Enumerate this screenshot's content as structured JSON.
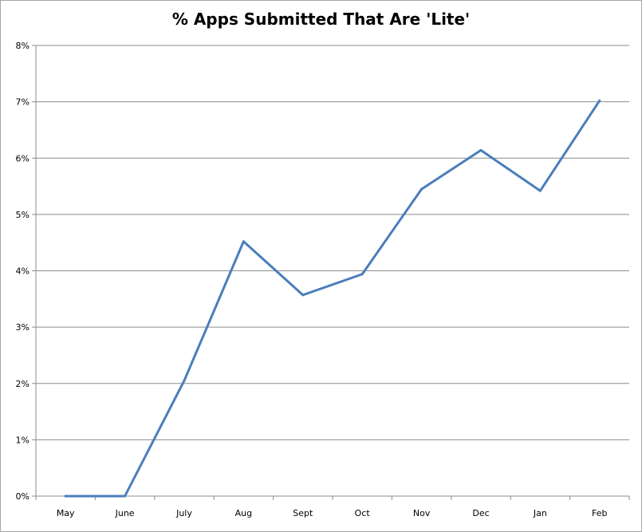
{
  "chart_data": {
    "type": "line",
    "title": "% Apps Submitted That Are 'Lite'",
    "xlabel": "",
    "ylabel": "",
    "categories": [
      "May",
      "June",
      "July",
      "Aug",
      "Sept",
      "Oct",
      "Nov",
      "Dec",
      "Jan",
      "Feb"
    ],
    "series": [
      {
        "values": [
          0.0,
          0.0,
          2.05,
          4.52,
          3.57,
          3.94,
          5.45,
          6.14,
          5.42,
          7.02
        ]
      }
    ],
    "ylim": [
      0,
      8
    ],
    "yticks": [
      0,
      1,
      2,
      3,
      4,
      5,
      6,
      7,
      8
    ],
    "ytick_labels": [
      "0%",
      "1%",
      "2%",
      "3%",
      "4%",
      "5%",
      "6%",
      "7%",
      "8%"
    ],
    "grid": true,
    "legend": "none",
    "line_color": "#4a7ebb",
    "grid_color": "#8c8c8c"
  }
}
